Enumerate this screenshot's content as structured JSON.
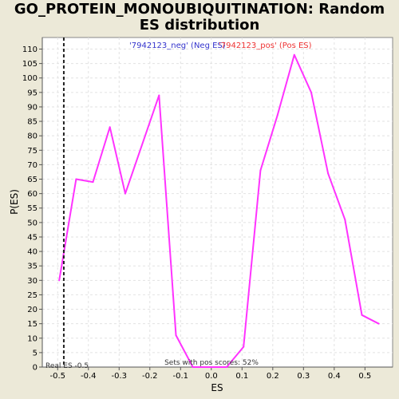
{
  "chart_data": {
    "type": "line",
    "title_line1": "GO_PROTEIN_MONOUBIQUITINATION: Random",
    "title_line2": "ES distribution",
    "xlabel": "ES",
    "ylabel": "P(ES)",
    "xlim": [
      -0.55,
      0.59
    ],
    "ylim": [
      0,
      114
    ],
    "x_ticks": [
      -0.5,
      -0.4,
      -0.3,
      -0.2,
      -0.1,
      0.0,
      0.1,
      0.2,
      0.3,
      0.4,
      0.5
    ],
    "x_tick_labels": [
      "-0.5",
      "-0.4",
      "-0.3",
      "-0.2",
      "-0.1",
      "0.0",
      "0.1",
      "0.2",
      "0.3",
      "0.4",
      "0.5"
    ],
    "y_ticks": [
      0,
      5,
      10,
      15,
      20,
      25,
      30,
      35,
      40,
      45,
      50,
      55,
      60,
      65,
      70,
      75,
      80,
      85,
      90,
      95,
      100,
      105,
      110
    ],
    "grid": true,
    "series": [
      {
        "color": "#ff33ff",
        "x": [
          -0.495,
          -0.44,
          -0.385,
          -0.33,
          -0.28,
          -0.17,
          -0.115,
          -0.06,
          0.0,
          0.05,
          0.105,
          0.16,
          0.215,
          0.27,
          0.325,
          0.38,
          0.435,
          0.49,
          0.545
        ],
        "y": [
          30,
          65,
          64,
          83,
          60,
          94,
          11,
          0,
          0,
          0,
          7,
          68,
          87,
          108,
          95,
          67,
          51,
          18,
          15
        ]
      }
    ],
    "real_es": -0.48,
    "real_es_label": "Real ES -0.5",
    "legend": [
      {
        "label": "'7942123_neg' (Neg ES)",
        "color": "#3333cc"
      },
      {
        "label": "'7942123_pos' (Pos ES)",
        "color": "#ee3333"
      }
    ],
    "footer_text": "Sets with pos scores: 52%"
  }
}
